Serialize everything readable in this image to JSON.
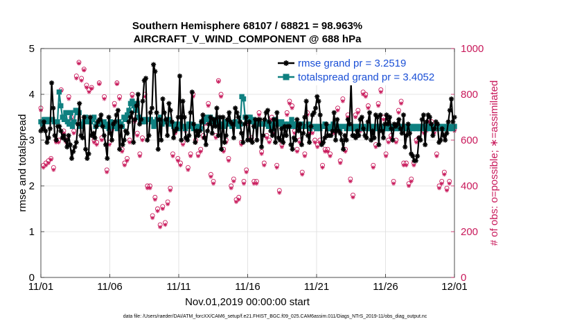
{
  "chart_data": {
    "type": "line",
    "title": "Southern Hemisphere 68107 / 68821 = 98.963%",
    "subtitle": "AIRCRAFT_V_WIND_COMPONENT @ 688 hPa",
    "xlabel": "Nov.01,2019 00:00:00 start",
    "ylabel": "rmse and totalspread",
    "y2label": "# of obs: o=possible; ∗=assimilated",
    "footnote": "data file: /Users/raeder/DAI/ATM_forcXX/CAM6_setup/f.e21.FHIST_BGC.f09_025.CAM6assim.011/Diags_NTrS_2019-11/obs_diag_output.nc",
    "xlim": [
      0,
      30
    ],
    "ylim": [
      0,
      5
    ],
    "y2lim": [
      0,
      1000
    ],
    "x_ticks": [
      0,
      5,
      10,
      15,
      20,
      25,
      30
    ],
    "x_tick_labels": [
      "11/01",
      "11/06",
      "11/11",
      "11/16",
      "11/21",
      "11/26",
      "12/01"
    ],
    "y_ticks": [
      0,
      1,
      2,
      3,
      4,
      5
    ],
    "y_tick_labels": [
      "0",
      "1",
      "2",
      "3",
      "4",
      "5"
    ],
    "y2_ticks": [
      0,
      200,
      400,
      600,
      800,
      1000
    ],
    "y2_tick_labels": [
      "0",
      "200",
      "400",
      "600",
      "800",
      "1000"
    ],
    "grid": true,
    "legend_position": "top-right",
    "colors": {
      "rmse": "#000000",
      "totalspread": "#0f8080",
      "obs": "#c8185a",
      "legend_text": "#1a4fd6"
    },
    "series": [
      {
        "name": "rmse grand pr = 3.2519",
        "marker": "star",
        "values": [
          3.2,
          3.25,
          3.4,
          3.2,
          2.95,
          3.05,
          3.25,
          4.25,
          3.7,
          3.1,
          3.0,
          3.3,
          3.3,
          3.2,
          3.05,
          3.1,
          3.0,
          2.85,
          3.1,
          2.9,
          2.6,
          2.75,
          2.85,
          2.95,
          3.35,
          3.8,
          3.1,
          3.05,
          3.5,
          2.8,
          2.6,
          2.7,
          3.5,
          3.1,
          3.15,
          3.05,
          3.3,
          3.4,
          3.45,
          3.55,
          3.3,
          3.1,
          2.9,
          2.6,
          3.5,
          3.15,
          3.0,
          3.35,
          3.4,
          3.55,
          3.65,
          2.8,
          3.3,
          2.9,
          3.0,
          3.2,
          3.15,
          3.4,
          3.5,
          3.6,
          2.95,
          3.45,
          3.75,
          4.0,
          3.35,
          3.45,
          3.85,
          4.3,
          4.35,
          3.0,
          3.1,
          3.6,
          3.7,
          4.65,
          4.5,
          3.6,
          2.8,
          3.45,
          3.0,
          3.9,
          3.6,
          3.45,
          3.1,
          3.8,
          3.65,
          3.4,
          3.05,
          3.2,
          3.25,
          3.5,
          4.4,
          3.0,
          3.85,
          3.5,
          3.05,
          3.0,
          3.1,
          3.6,
          4.05,
          3.35,
          2.95,
          3.2,
          3.1,
          3.2,
          3.4,
          3.55,
          3.05,
          2.9,
          3.2,
          3.35,
          3.5,
          3.15,
          3.45,
          3.3,
          3.7,
          3.1,
          3.5,
          2.8,
          3.5,
          2.95,
          3.1,
          3.45,
          3.6,
          3.4,
          3.35,
          3.05,
          3.7,
          3.6,
          3.5,
          3.4,
          3.15,
          2.95,
          3.35,
          3.5,
          3.0,
          3.4,
          3.0,
          2.95,
          3.3,
          3.45,
          3.0,
          3.45,
          3.45,
          2.85,
          3.1,
          3.45,
          3.6,
          3.65,
          3.4,
          3.2,
          3.1,
          3.45,
          2.95,
          3.6,
          3.05,
          3.0,
          3.25,
          2.95,
          3.3,
          3.1,
          3.3,
          3.3,
          2.9,
          2.8,
          3.05,
          3.0,
          3.45,
          3.2,
          3.35,
          2.9,
          3.15,
          3.5,
          3.85,
          3.1,
          2.95,
          3.3,
          3.55,
          3.6,
          3.7,
          3.95,
          3.85,
          3.55,
          2.9,
          2.95,
          3.05,
          3.35,
          3.1,
          3.1,
          3.1,
          3.2,
          3.6,
          3.0,
          3.45,
          3.2,
          3.15,
          3.0,
          2.8,
          3.1,
          3.0,
          3.45,
          3.35,
          4.25,
          3.1,
          3.1,
          3.05,
          3.2,
          3.1,
          3.45,
          3.5,
          3.25,
          3.1,
          3.05,
          3.4,
          3.6,
          3.0,
          3.2,
          3.05,
          3.55,
          3.5,
          2.9,
          3.55,
          3.2,
          3.05,
          3.35,
          3.55,
          3.35,
          3.5,
          3.25,
          3.0,
          3.35,
          3.3,
          3.35,
          3.45,
          3.25,
          3.15,
          3.55,
          2.85,
          3.1,
          3.35,
          3.15,
          2.7,
          2.65,
          2.55,
          2.55,
          2.65,
          3.05,
          3.0,
          3.45,
          3.55,
          2.9,
          3.4,
          3.55,
          3.5,
          3.35,
          3.1,
          3.25,
          3.4,
          3.35,
          2.95,
          3.0,
          3.25,
          3.1,
          3.0,
          3.15,
          3.4,
          3.65,
          3.9,
          3.4,
          3.5
        ]
      },
      {
        "name": "totalspread grand pr = 3.4052",
        "marker": "square",
        "values": [
          3.4,
          3.35,
          3.45,
          3.45,
          3.4,
          3.45,
          3.45,
          3.45,
          3.4,
          3.4,
          3.4,
          4.05,
          3.75,
          3.5,
          3.45,
          3.6,
          3.4,
          3.35,
          3.6,
          3.3,
          3.4,
          3.65,
          3.6,
          3.6,
          3.3,
          3.35,
          3.4,
          3.5,
          3.45,
          3.4,
          3.4,
          3.45,
          3.5,
          3.3,
          3.35,
          3.4,
          3.35,
          3.35,
          3.4,
          3.3,
          3.35,
          3.25,
          3.4,
          3.35,
          3.3,
          3.3,
          3.25,
          3.4,
          3.35,
          3.3,
          3.5,
          3.45,
          3.55,
          3.65,
          3.8,
          3.85,
          3.75,
          3.65,
          3.8,
          3.5,
          3.45,
          3.4,
          3.45,
          3.4,
          3.45,
          3.45,
          3.45,
          3.4,
          3.3,
          3.35,
          3.45,
          3.45,
          3.5,
          3.35,
          3.4,
          3.4,
          3.4,
          3.45,
          3.35,
          3.35,
          3.3,
          3.35,
          3.3,
          3.25,
          3.35,
          3.3,
          3.3,
          3.25,
          3.3,
          3.35,
          3.35,
          3.3,
          3.25,
          3.3,
          3.25,
          3.3,
          3.25,
          3.4,
          3.4,
          3.45,
          3.5,
          3.45,
          3.5,
          3.4,
          3.45,
          3.45,
          3.35,
          3.4,
          3.3,
          3.35,
          3.3,
          3.4,
          3.35,
          3.4,
          3.35,
          3.3,
          3.35,
          3.4,
          3.35,
          3.3,
          3.35,
          3.95,
          3.9,
          3.5,
          3.45,
          3.5,
          3.5,
          3.4,
          3.45,
          3.3,
          3.4,
          3.35,
          3.35,
          3.35,
          3.35,
          3.4,
          3.35,
          3.3,
          3.3,
          3.25,
          3.35,
          3.45,
          3.4,
          3.35,
          3.35,
          3.4,
          3.3,
          3.35,
          3.3,
          3.35,
          3.3,
          3.45,
          3.35,
          3.3,
          3.35,
          3.3,
          3.3,
          3.35,
          3.3,
          3.3,
          3.3,
          3.35,
          3.25,
          3.3,
          3.3,
          3.3,
          3.25,
          3.3,
          3.25,
          3.3,
          3.3,
          3.35,
          3.3,
          3.25,
          3.25,
          3.3,
          3.35,
          3.25,
          3.3,
          3.3,
          3.25,
          3.3,
          3.3,
          3.3,
          3.25,
          3.3,
          3.3,
          3.25,
          3.3,
          3.25,
          3.3,
          3.25,
          3.3,
          3.25,
          3.3,
          3.25,
          3.3,
          3.25,
          3.25,
          3.3,
          3.25,
          3.3,
          3.25,
          3.3,
          3.25,
          3.3,
          3.25,
          3.3,
          3.25,
          3.3,
          3.25,
          3.3,
          3.25,
          3.3,
          3.25,
          3.3,
          3.25,
          3.3,
          3.25,
          3.3,
          3.25,
          3.3,
          3.25,
          3.3,
          3.25,
          3.3,
          3.25,
          3.3,
          3.25,
          3.3,
          3.25,
          3.3,
          3.25,
          3.3,
          3.25,
          3.3,
          3.25,
          3.3,
          3.25,
          3.3,
          3.25,
          3.3,
          3.25,
          3.3,
          3.25,
          3.3,
          3.25,
          3.3,
          3.25,
          3.3
        ]
      }
    ],
    "obs_possible": [
      740,
      490,
      500,
      510,
      520,
      480,
      600,
      600,
      820,
      640,
      600,
      790,
      700,
      640,
      880,
      940,
      870,
      910,
      840,
      820,
      830,
      600,
      590,
      850,
      610,
      790,
      470,
      590,
      650,
      760,
      850,
      790,
      560,
      500,
      520,
      600,
      800,
      690,
      630,
      540,
      610,
      800,
      400,
      400,
      270,
      350,
      300,
      230,
      310,
      240,
      330,
      390,
      540,
      640,
      520,
      500,
      590,
      650,
      480,
      540,
      800,
      600,
      540,
      560,
      620,
      680,
      760,
      450,
      420,
      620,
      860,
      800,
      560,
      600,
      520,
      400,
      430,
      340,
      350,
      590,
      420,
      470,
      680,
      610,
      420,
      420,
      720,
      550,
      500,
      620,
      600,
      700,
      640,
      490,
      380,
      580,
      670,
      720,
      770,
      750,
      640,
      560,
      600,
      460,
      540,
      720,
      640,
      640,
      600,
      580,
      600,
      490,
      560,
      560,
      540,
      640,
      640,
      740,
      510,
      780,
      560,
      710,
      430,
      360,
      710,
      730,
      650,
      810,
      800,
      750,
      660,
      490,
      580,
      760,
      820,
      700,
      540,
      600,
      620,
      420,
      600,
      730,
      770,
      500,
      500,
      410,
      430,
      500,
      600,
      610,
      660,
      640,
      650,
      690,
      680,
      640,
      540,
      400,
      420,
      460,
      390,
      420,
      660,
      650
    ],
    "obs_assimilated": [
      730,
      480,
      490,
      500,
      515,
      470,
      590,
      590,
      815,
      630,
      590,
      780,
      690,
      630,
      870,
      935,
      860,
      905,
      830,
      810,
      825,
      590,
      580,
      845,
      600,
      780,
      460,
      580,
      640,
      750,
      845,
      780,
      550,
      490,
      510,
      590,
      790,
      680,
      620,
      530,
      600,
      790,
      390,
      390,
      260,
      340,
      290,
      220,
      300,
      230,
      320,
      380,
      530,
      630,
      510,
      490,
      580,
      640,
      470,
      530,
      790,
      590,
      530,
      550,
      610,
      670,
      750,
      440,
      410,
      610,
      855,
      790,
      550,
      590,
      510,
      390,
      420,
      330,
      340,
      580,
      410,
      460,
      670,
      600,
      410,
      410,
      710,
      540,
      490,
      610,
      590,
      690,
      630,
      480,
      370,
      570,
      660,
      710,
      760,
      740,
      630,
      550,
      590,
      450,
      530,
      710,
      630,
      630,
      590,
      570,
      590,
      480,
      550,
      550,
      530,
      630,
      630,
      730,
      500,
      770,
      550,
      700,
      420,
      350,
      700,
      720,
      640,
      800,
      790,
      740,
      650,
      480,
      570,
      750,
      810,
      690,
      530,
      590,
      610,
      410,
      590,
      720,
      760,
      490,
      490,
      400,
      420,
      490,
      590,
      600,
      650,
      630,
      640,
      680,
      670,
      630,
      530,
      390,
      410,
      450,
      380,
      410,
      650,
      640
    ]
  }
}
